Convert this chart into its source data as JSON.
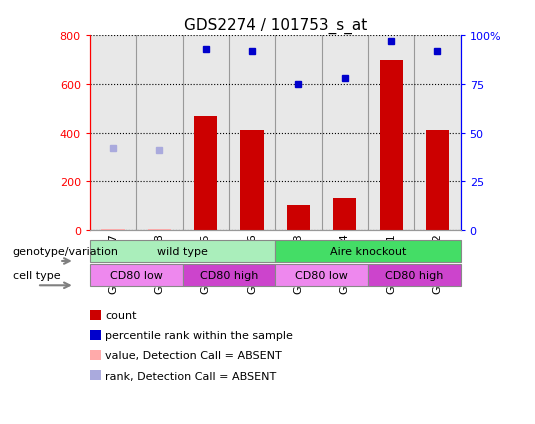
{
  "title": "GDS2274 / 101753_s_at",
  "samples": [
    "GSM49737",
    "GSM49738",
    "GSM49735",
    "GSM49736",
    "GSM49733",
    "GSM49734",
    "GSM49731",
    "GSM49732"
  ],
  "count": [
    5,
    5,
    470,
    410,
    100,
    130,
    700,
    410
  ],
  "percentile_rank": [
    null,
    null,
    93.0,
    92.0,
    75.0,
    78.0,
    97.0,
    92.0
  ],
  "absent_rank": [
    42,
    41,
    null,
    null,
    null,
    null,
    null,
    null
  ],
  "count_absent": [
    true,
    true,
    false,
    false,
    false,
    false,
    false,
    false
  ],
  "ylim_left": [
    0,
    800
  ],
  "ylim_right": [
    0,
    100
  ],
  "yticks_left": [
    0,
    200,
    400,
    600,
    800
  ],
  "yticks_right": [
    0,
    25,
    50,
    75,
    100
  ],
  "yticklabels_right": [
    "0",
    "25",
    "50",
    "75",
    "100%"
  ],
  "bar_color": "#cc0000",
  "blue_marker_color": "#0000cc",
  "absent_value_color": "#ffaaaa",
  "absent_rank_color": "#aaaadd",
  "grid_color": "#000000",
  "bg_color": "#ffffff",
  "plot_bg_color": "#e8e8e8",
  "genotype_groups": [
    {
      "label": "wild type",
      "start": 0,
      "end": 4,
      "color": "#aaeebb"
    },
    {
      "label": "Aire knockout",
      "start": 4,
      "end": 8,
      "color": "#44dd66"
    }
  ],
  "cell_type_groups": [
    {
      "label": "CD80 low",
      "start": 0,
      "end": 2,
      "color": "#ee88ee"
    },
    {
      "label": "CD80 high",
      "start": 2,
      "end": 4,
      "color": "#cc44cc"
    },
    {
      "label": "CD80 low",
      "start": 4,
      "end": 6,
      "color": "#ee88ee"
    },
    {
      "label": "CD80 high",
      "start": 6,
      "end": 8,
      "color": "#cc44cc"
    }
  ],
  "legend_items": [
    {
      "label": "count",
      "color": "#cc0000"
    },
    {
      "label": "percentile rank within the sample",
      "color": "#0000cc"
    },
    {
      "label": "value, Detection Call = ABSENT",
      "color": "#ffaaaa"
    },
    {
      "label": "rank, Detection Call = ABSENT",
      "color": "#aaaadd"
    }
  ],
  "left_label_genotype": "genotype/variation",
  "left_label_celltype": "cell type",
  "title_fontsize": 11,
  "tick_fontsize": 8,
  "label_fontsize": 8,
  "legend_fontsize": 8
}
